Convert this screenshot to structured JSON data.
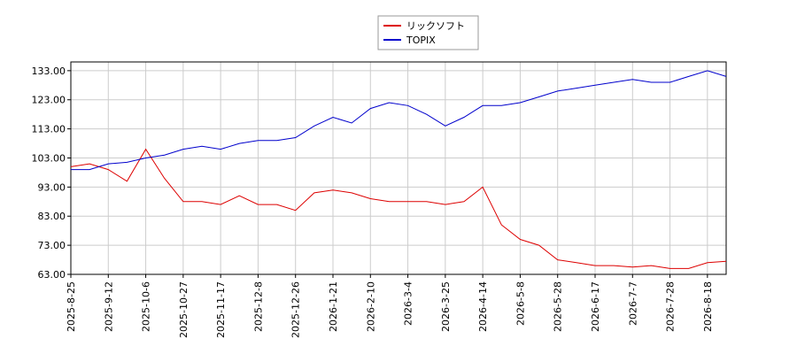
{
  "chart_data": {
    "type": "line",
    "x": [
      "2025-8-25",
      "2025-9-3",
      "2025-9-12",
      "2025-9-24",
      "2025-10-6",
      "2025-10-16",
      "2025-10-27",
      "2025-11-6",
      "2025-11-17",
      "2025-11-27",
      "2025-12-8",
      "2025-12-17",
      "2025-12-26",
      "2026-1-9",
      "2026-1-21",
      "2026-1-30",
      "2026-2-10",
      "2026-2-20",
      "2026-3-4",
      "2026-3-13",
      "2026-3-25",
      "2026-4-3",
      "2026-4-14",
      "2026-4-24",
      "2026-5-8",
      "2026-5-19",
      "2026-5-28",
      "2026-6-8",
      "2026-6-17",
      "2026-6-26",
      "2026-7-7",
      "2026-7-16",
      "2026-7-28",
      "2026-8-6",
      "2026-8-18",
      "2026-8-24"
    ],
    "series": [
      {
        "name": "リックソフト",
        "color": "#dd0000",
        "values": [
          100,
          101,
          99,
          95,
          106,
          96,
          88,
          88,
          87,
          90,
          87,
          87,
          85,
          91,
          92,
          91,
          89,
          88,
          88,
          88,
          87,
          88,
          93,
          80,
          75,
          73,
          68,
          67,
          66,
          66,
          65.5,
          66,
          65,
          65,
          67,
          67.5
        ]
      },
      {
        "name": "TOPIX",
        "color": "#0000cc",
        "values": [
          99,
          99,
          101,
          101.5,
          103,
          104,
          106,
          107,
          106,
          108,
          109,
          109,
          110,
          114,
          117,
          115,
          120,
          122,
          121,
          118,
          114,
          117,
          121,
          121,
          122,
          124,
          126,
          127,
          128,
          129,
          130,
          129,
          129,
          131,
          133,
          131
        ]
      }
    ],
    "xticks": [
      "2025-8-25",
      "2025-9-12",
      "2025-10-6",
      "2025-10-27",
      "2025-11-17",
      "2025-12-8",
      "2025-12-26",
      "2026-1-21",
      "2026-2-10",
      "2026-3-4",
      "2026-3-25",
      "2026-4-14",
      "2026-5-8",
      "2026-5-28",
      "2026-6-17",
      "2026-7-7",
      "2026-7-28",
      "2026-8-18"
    ],
    "ylim": [
      63,
      136
    ],
    "yticks": [
      {
        "value": 63,
        "label": "63.00"
      },
      {
        "value": 73,
        "label": "73.00"
      },
      {
        "value": 83,
        "label": "83.00"
      },
      {
        "value": 93,
        "label": "93.00"
      },
      {
        "value": 103,
        "label": "103.00"
      },
      {
        "value": 113,
        "label": "113.00"
      },
      {
        "value": 123,
        "label": "123.00"
      },
      {
        "value": 133,
        "label": "133.00"
      }
    ],
    "grid": true,
    "legend": "top"
  }
}
